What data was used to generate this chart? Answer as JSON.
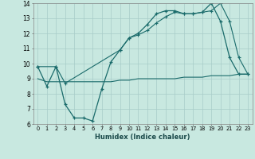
{
  "xlabel": "Humidex (Indice chaleur)",
  "xlim": [
    -0.5,
    23.5
  ],
  "ylim": [
    6,
    14
  ],
  "xticks": [
    0,
    1,
    2,
    3,
    4,
    5,
    6,
    7,
    8,
    9,
    10,
    11,
    12,
    13,
    14,
    15,
    16,
    17,
    18,
    19,
    20,
    21,
    22,
    23
  ],
  "yticks": [
    6,
    7,
    8,
    9,
    10,
    11,
    12,
    13,
    14
  ],
  "bg_color": "#c8e8e0",
  "grid_color": "#a8ccc8",
  "line_color": "#1a6b6b",
  "line1_x": [
    0,
    1,
    2,
    3,
    4,
    5,
    6,
    7,
    8,
    9,
    10,
    11,
    12,
    13,
    14,
    15,
    16,
    17,
    18,
    19,
    20,
    21,
    22,
    23
  ],
  "line1_y": [
    9.8,
    8.5,
    9.8,
    7.3,
    6.4,
    6.4,
    6.2,
    8.3,
    10.1,
    10.9,
    11.7,
    12.0,
    12.6,
    13.3,
    13.5,
    13.5,
    13.3,
    13.3,
    13.4,
    14.0,
    12.8,
    10.4,
    9.3,
    9.3
  ],
  "line2_x": [
    0,
    1,
    2,
    3,
    4,
    5,
    6,
    7,
    8,
    9,
    10,
    11,
    12,
    13,
    14,
    15,
    16,
    17,
    18,
    19,
    20,
    21,
    22,
    23
  ],
  "line2_y": [
    9.0,
    8.8,
    8.8,
    8.8,
    8.8,
    8.8,
    8.8,
    8.8,
    8.8,
    8.9,
    8.9,
    9.0,
    9.0,
    9.0,
    9.0,
    9.0,
    9.1,
    9.1,
    9.1,
    9.2,
    9.2,
    9.2,
    9.3,
    9.3
  ],
  "line3_x": [
    0,
    2,
    3,
    9,
    10,
    11,
    12,
    13,
    14,
    15,
    16,
    17,
    18,
    19,
    20,
    21,
    22,
    23
  ],
  "line3_y": [
    9.8,
    9.8,
    8.7,
    10.9,
    11.7,
    11.9,
    12.2,
    12.7,
    13.1,
    13.4,
    13.3,
    13.3,
    13.4,
    13.5,
    14.0,
    12.8,
    10.4,
    9.3
  ]
}
